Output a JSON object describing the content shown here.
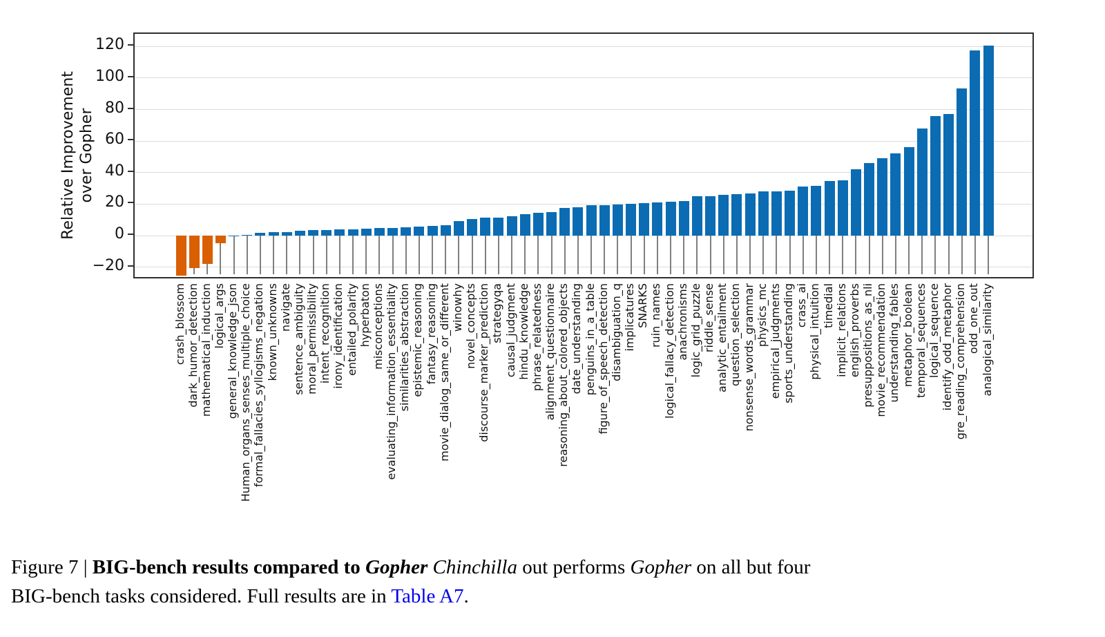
{
  "chart": {
    "y_axis": {
      "label": "Relative Improvement\nover Gopher",
      "ticks": [
        120,
        100,
        80,
        60,
        40,
        20,
        0,
        -20
      ]
    },
    "colors": {
      "positive_bar": "#0b6cb3",
      "negative_bar": "#d95f02",
      "stem": "#7f7f7f",
      "gridline": "#dcdcdc",
      "spine": "#2e2e2e",
      "link": "#0000ee"
    }
  },
  "chart_data": {
    "type": "bar",
    "title": "",
    "xlabel": "",
    "ylabel": "Relative Improvement over Gopher",
    "ylim": [
      -28,
      128
    ],
    "grid": true,
    "yticks": [
      -20,
      0,
      20,
      40,
      60,
      80,
      100,
      120
    ],
    "categories": [
      "crash_blossom",
      "dark_humor_detection",
      "mathematical_induction",
      "logical_args",
      "general_knowledge_json",
      "Human_organs_senses_multiple_choice",
      "formal_fallacies_syllogisms_negation",
      "known_unknowns",
      "navigate",
      "sentence_ambiguity",
      "moral_permissibility",
      "intent_recognition",
      "irony_identification",
      "entailed_polarity",
      "hyperbaton",
      "misconceptions",
      "evaluating_information_essentiality",
      "similarities_abstraction",
      "epistemic_reasoning",
      "fantasy_reasoning",
      "movie_dialog_same_or_different",
      "winowhy",
      "novel_concepts",
      "discourse_marker_prediction",
      "strategyqa",
      "causal_judgment",
      "hindu_knowledge",
      "phrase_relatedness",
      "alignment_questionnaire",
      "reasoning_about_colored_objects",
      "date_understanding",
      "penguins_in_a_table",
      "figure_of_speech_detection",
      "disambiguation_q",
      "implicatures",
      "SNARKS",
      "ruin_names",
      "logical_fallacy_detection",
      "anachronisms",
      "logic_grid_puzzle",
      "riddle_sense",
      "analytic_entailment",
      "question_selection",
      "nonsense_words_grammar",
      "physics_mc",
      "empirical_judgments",
      "sports_understanding",
      "crass_ai",
      "physical_intuition",
      "timedial",
      "implicit_relations",
      "english_proverbs",
      "presuppositions_as_nli",
      "movie_recommendation",
      "understanding_fables",
      "metaphor_boolean",
      "temporal_sequences",
      "logical_sequence",
      "identify_odd_metaphor",
      "gre_reading_comprehension",
      "odd_one_out",
      "analogical_similarity"
    ],
    "values": [
      -25.3,
      -20.6,
      -17.9,
      -4.7,
      0.2,
      0.7,
      1.8,
      2.1,
      2.4,
      3.0,
      3.4,
      3.7,
      3.9,
      4.1,
      4.6,
      4.8,
      5.0,
      5.2,
      5.9,
      6.3,
      6.5,
      9.4,
      10.4,
      11.3,
      11.5,
      12.5,
      13.6,
      14.4,
      15.1,
      17.6,
      18.0,
      19.2,
      19.2,
      19.6,
      20.4,
      20.5,
      21.2,
      21.7,
      21.9,
      24.9,
      25.2,
      26.0,
      26.4,
      26.6,
      28.0,
      28.3,
      28.6,
      31.2,
      31.6,
      34.6,
      35.0,
      42.3,
      46.1,
      49.0,
      52.0,
      56.0,
      68.0,
      75.9,
      77.0,
      93.6,
      117.5,
      120.5
    ],
    "color_rule": "negative bars orange, positive bars blue",
    "legend": null
  },
  "caption": {
    "figure_label": "Figure 7",
    "separator": " | ",
    "title_bold": "BIG-bench results compared to ",
    "title_bold_italic": "Gopher",
    "space": " ",
    "body_italic_1": "Chinchilla",
    "body_text_1": " out performs ",
    "body_italic_2": "Gopher",
    "body_text_2": " on all but four",
    "body_text_3": "BIG-bench tasks considered. Full results are in ",
    "link_text": "Table A7",
    "body_text_4": "."
  }
}
